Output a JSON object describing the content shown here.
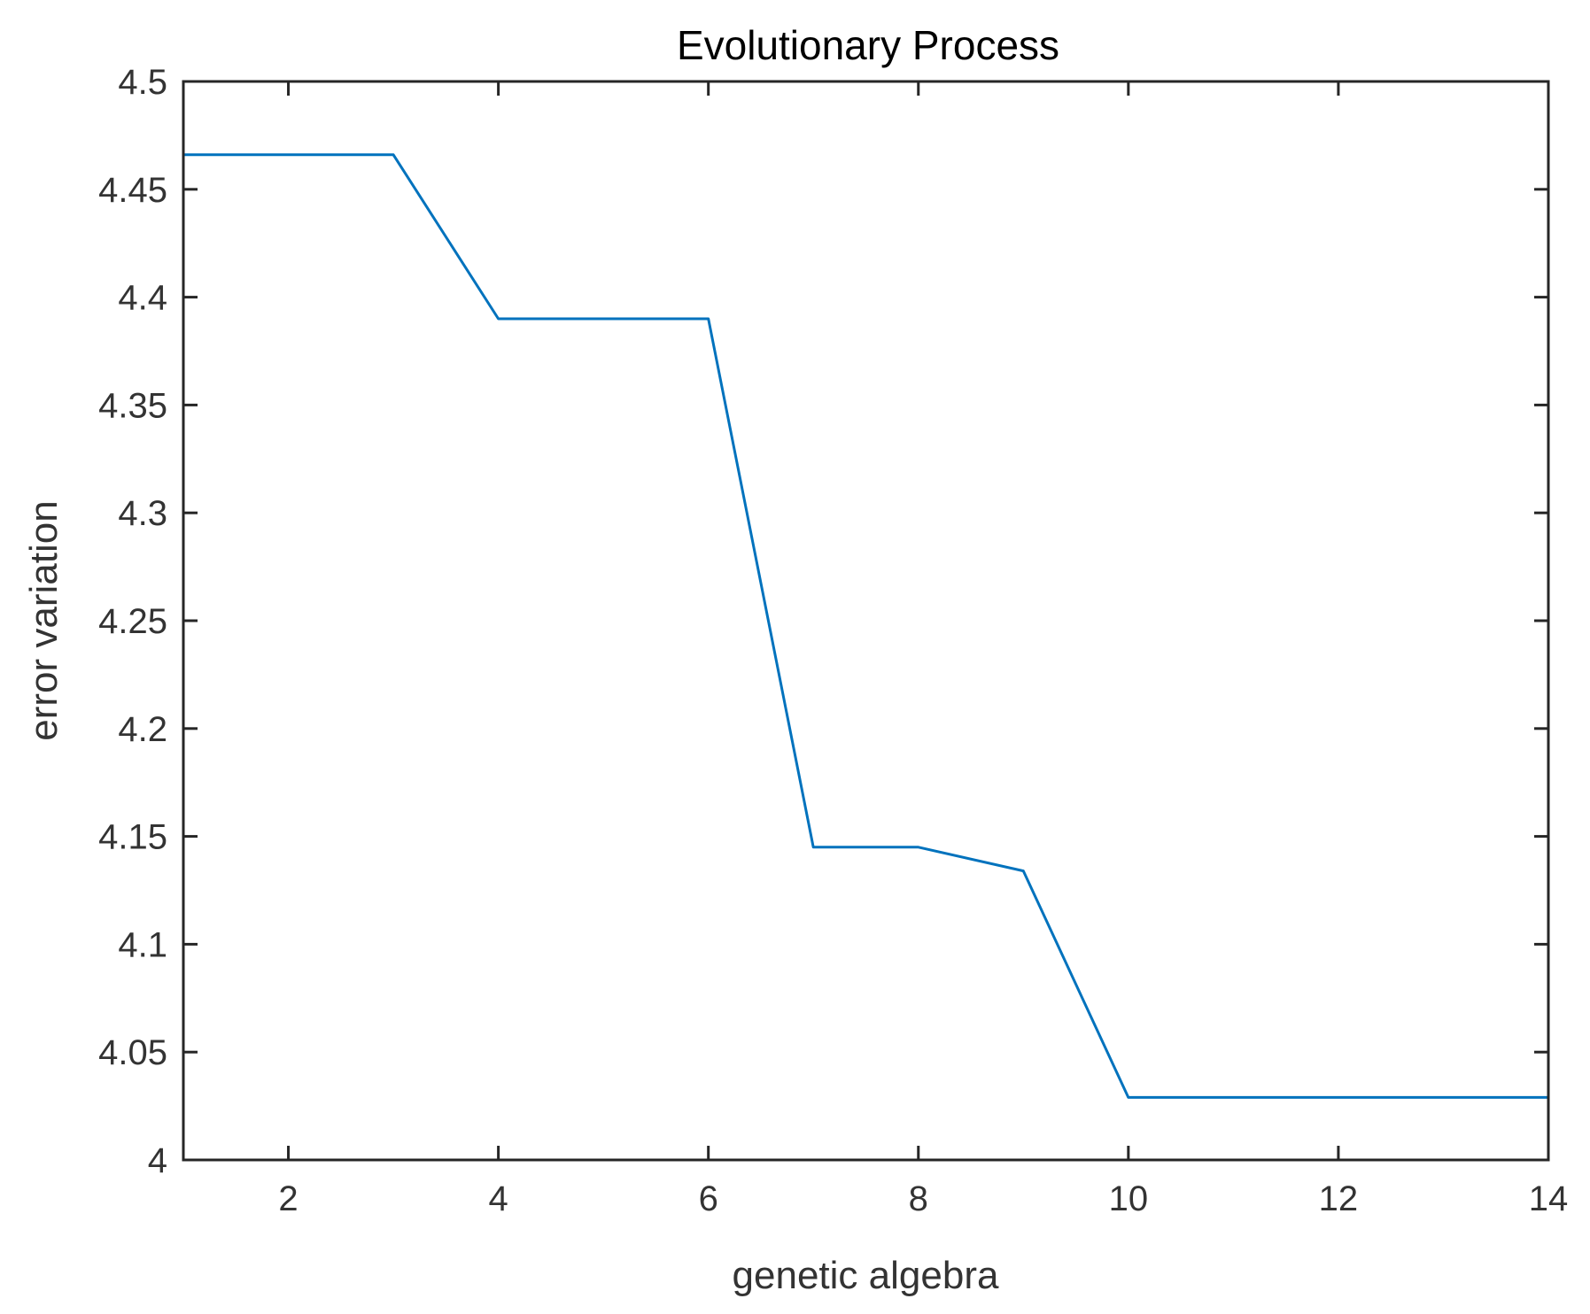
{
  "chart_data": {
    "type": "line",
    "title": "Evolutionary Process",
    "xlabel": "genetic algebra",
    "ylabel": "error variation",
    "xlim": [
      1,
      14
    ],
    "ylim": [
      4,
      4.5
    ],
    "x_ticks": [
      2,
      4,
      6,
      8,
      10,
      12,
      14
    ],
    "x_tick_labels": [
      "2",
      "4",
      "6",
      "8",
      "10",
      "12",
      "14"
    ],
    "y_ticks": [
      4,
      4.05,
      4.1,
      4.15,
      4.2,
      4.25,
      4.3,
      4.35,
      4.4,
      4.45,
      4.5
    ],
    "y_tick_labels": [
      "4",
      "4.05",
      "4.1",
      "4.15",
      "4.2",
      "4.25",
      "4.3",
      "4.35",
      "4.4",
      "4.45",
      "4.5"
    ],
    "grid": false,
    "series": [
      {
        "color": "#0072bd",
        "x": [
          1,
          2,
          3,
          4,
          5,
          6,
          7,
          8,
          9,
          10,
          11,
          12,
          13,
          14
        ],
        "y": [
          4.466,
          4.466,
          4.466,
          4.39,
          4.39,
          4.39,
          4.145,
          4.145,
          4.134,
          4.029,
          4.029,
          4.029,
          4.029,
          4.029
        ]
      }
    ]
  }
}
